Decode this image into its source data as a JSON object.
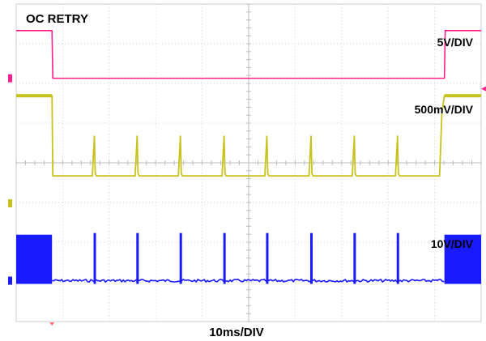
{
  "chart_data": {
    "type": "line",
    "title": "OC RETRY",
    "xlabel": "10ms/DIV",
    "grid": true,
    "x_divisions": 10,
    "y_divisions": 8,
    "channels": [
      {
        "id": "C2",
        "scale": "5V/DIV",
        "color": "#ff1f8f",
        "high_level_div": 3.33,
        "low_level_div": 2.13,
        "off_start_div": 0.77,
        "off_end_div": 9.21
      },
      {
        "id": "C1",
        "scale": "500mV/DIV",
        "color": "#c8c21f",
        "high_level_div": 1.69,
        "low_level_div": -0.33,
        "off_start_div": 0.77,
        "off_end_div": 9.21,
        "pulse_times_div": [
          1.69,
          2.61,
          3.54,
          4.48,
          5.4,
          6.35,
          7.28,
          8.21
        ],
        "pulse_peak_div": 0.67
      },
      {
        "id": "C3",
        "scale": "10V/DIV",
        "color": "#1a1aff",
        "high_level_div": -1.81,
        "low_level_div": -2.97,
        "off_start_div": 0.77,
        "off_end_div": 9.21,
        "pulse_times_div": [
          1.69,
          2.61,
          3.54,
          4.48,
          5.4,
          6.35,
          7.28,
          8.21
        ],
        "pulse_peak_div": -1.81
      }
    ]
  }
}
